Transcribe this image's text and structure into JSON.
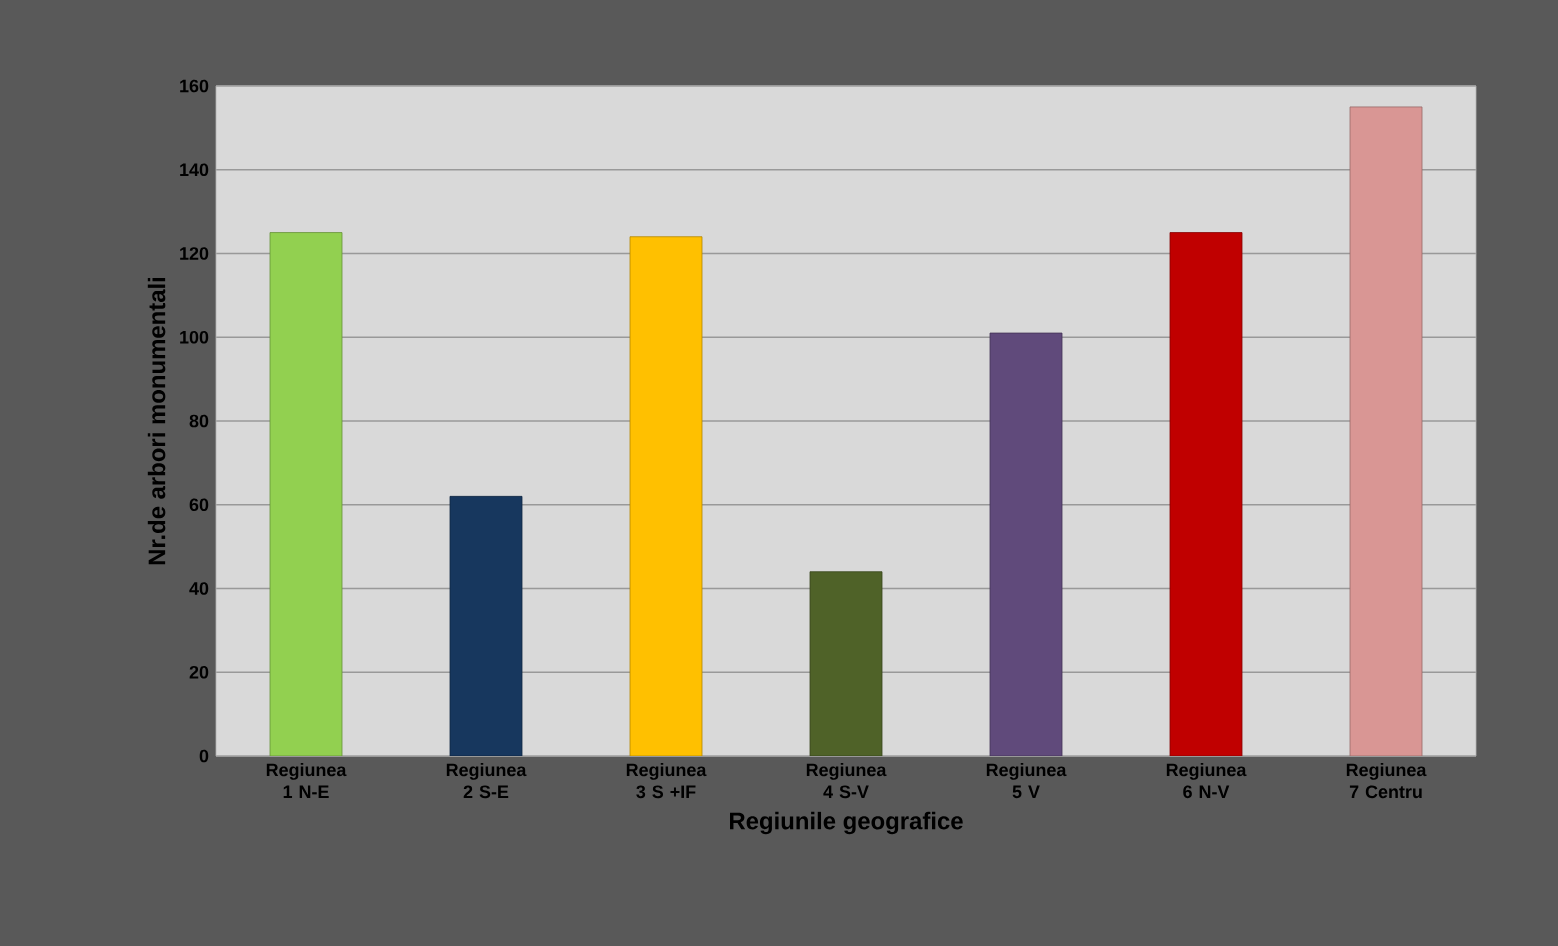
{
  "chart_data": {
    "type": "bar",
    "categories": [
      "Regiunea 1 N-E",
      "Regiunea 2 S-E",
      "Regiunea 3 S +IF",
      "Regiunea 4 S-V",
      "Regiunea 5 V",
      "Regiunea 6 N-V",
      "Regiunea 7 Centru"
    ],
    "values": [
      125,
      62,
      124,
      44,
      101,
      125,
      155
    ],
    "colors": [
      "#92d050",
      "#17375e",
      "#ffc000",
      "#4f6228",
      "#604a7b",
      "#c00000",
      "#d99694"
    ],
    "xlabel": "Regiunile geografice",
    "ylabel": "Nr.de arbori monumentali",
    "ylim": [
      0,
      160
    ],
    "yticks": [
      0,
      20,
      40,
      60,
      80,
      100,
      120,
      140,
      160
    ],
    "grid": "y"
  }
}
